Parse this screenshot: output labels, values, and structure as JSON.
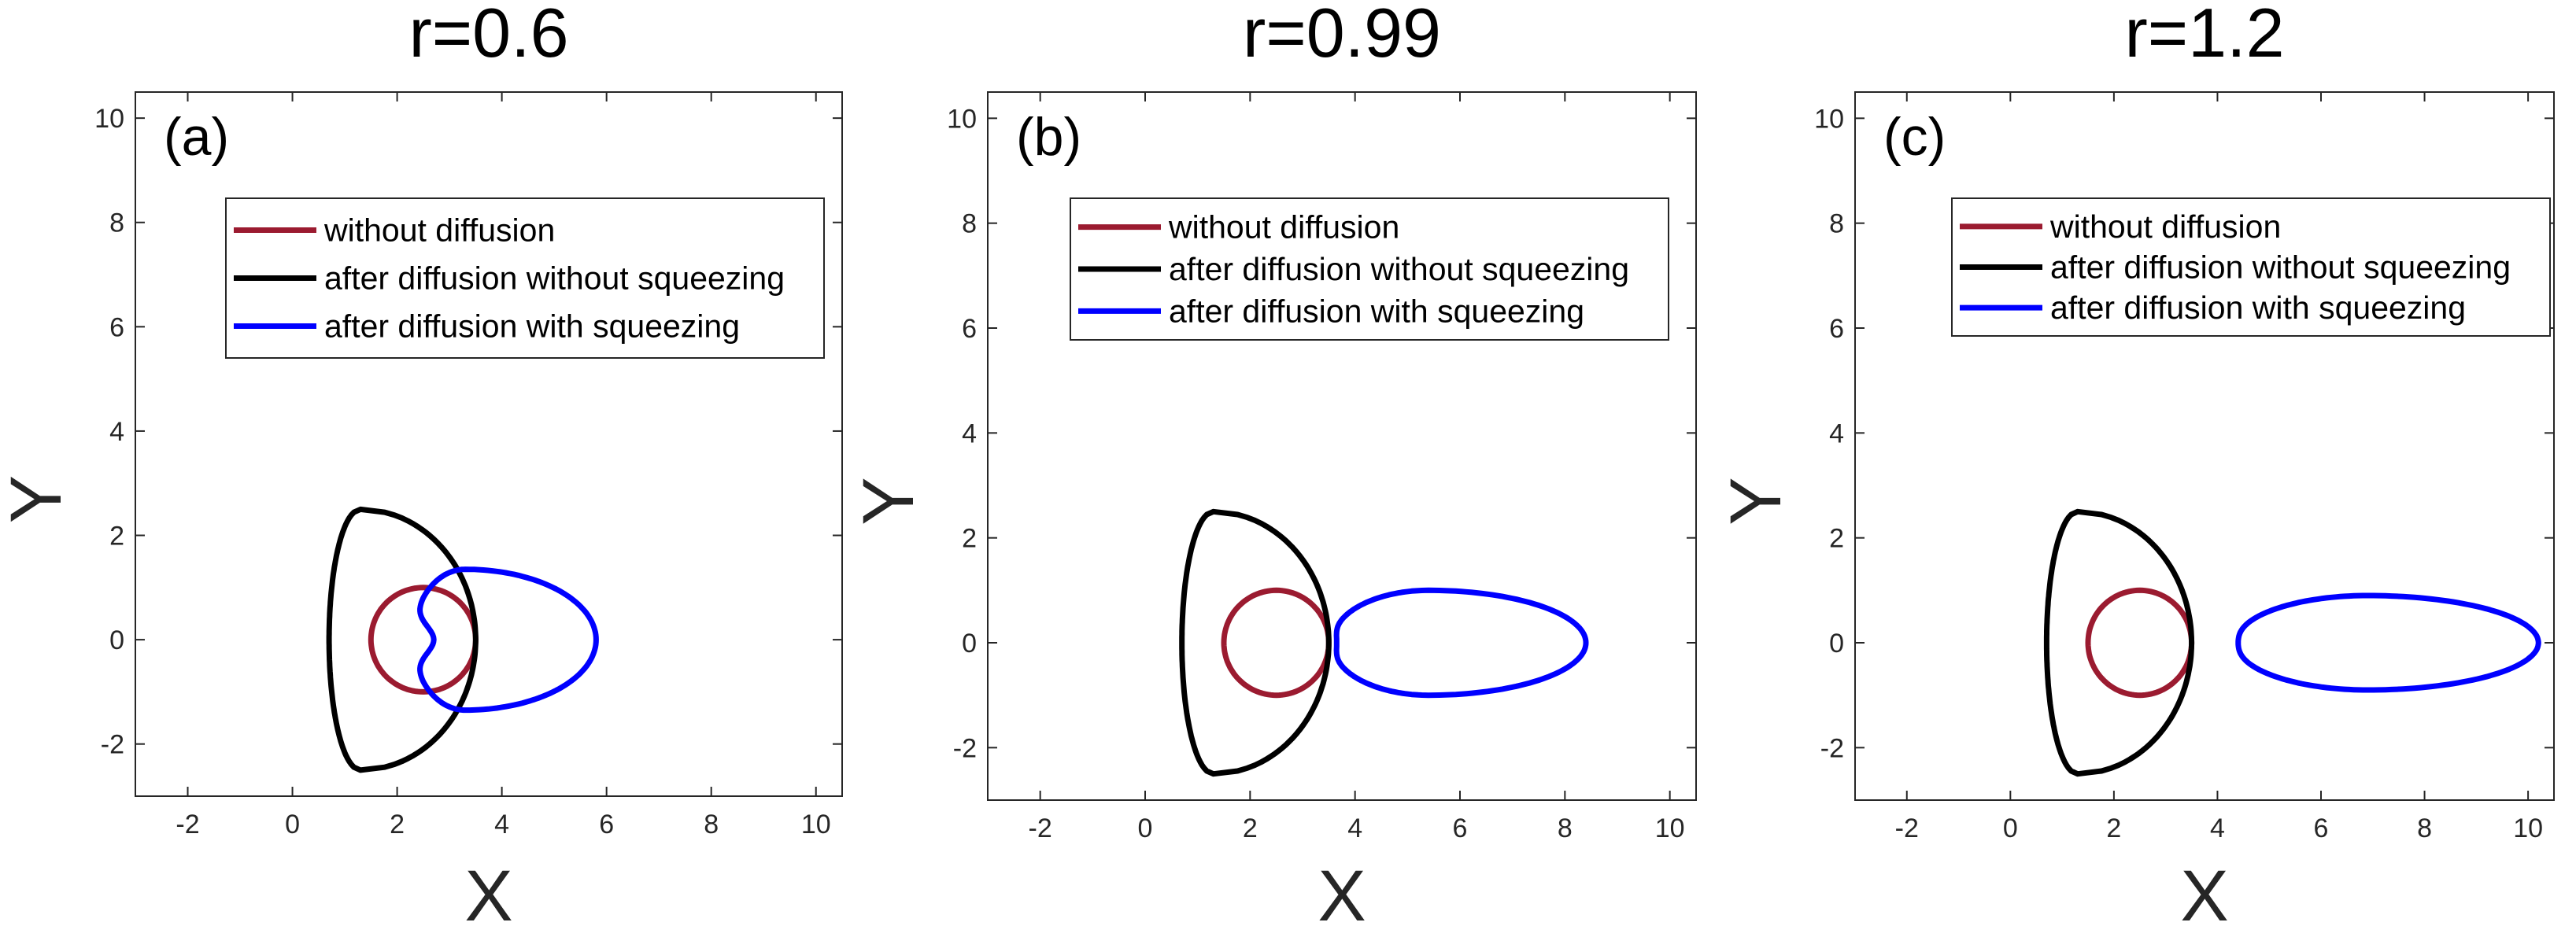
{
  "figure": {
    "legend_labels": [
      "without diffusion",
      "after diffusion without squeezing",
      "after diffusion with squeezing"
    ]
  },
  "chart_data": [
    {
      "type": "line",
      "panel_label": "(a)",
      "title": "r=0.6",
      "xlabel": "X",
      "ylabel": "Y",
      "xlim": [
        -3,
        10.5
      ],
      "ylim": [
        -3,
        10.5
      ],
      "xticks": [
        -2,
        0,
        2,
        4,
        6,
        8,
        10
      ],
      "yticks": [
        -2,
        0,
        2,
        4,
        6,
        8,
        10
      ],
      "grid": false,
      "legend_position": "top-center",
      "series": [
        {
          "name": "without diffusion",
          "color": "#9b1b30",
          "shape": "circle",
          "params": {
            "cx": 2.5,
            "cy": 0,
            "r": 1.0
          }
        },
        {
          "name": "after diffusion without squeezing",
          "color": "#000000",
          "shape": "crescent",
          "params": {
            "tipX": 1.3,
            "tipY": 2.5,
            "outerX": 3.5,
            "innerX": 0.7
          }
        },
        {
          "name": "after diffusion with squeezing",
          "color": "#0000ff",
          "shape": "dimpled-ellipse",
          "params": {
            "left": 2.3,
            "right": 5.8,
            "center": 3.3,
            "halfHeight": 1.35,
            "dimple": 0.4
          }
        }
      ]
    },
    {
      "type": "line",
      "panel_label": "(b)",
      "title": "r=0.99",
      "xlabel": "X",
      "ylabel": "Y",
      "xlim": [
        -3,
        10.5
      ],
      "ylim": [
        -3,
        10.5
      ],
      "xticks": [
        -2,
        0,
        2,
        4,
        6,
        8,
        10
      ],
      "yticks": [
        -2,
        0,
        2,
        4,
        6,
        8,
        10
      ],
      "grid": false,
      "legend_position": "top-center",
      "series": [
        {
          "name": "without diffusion",
          "color": "#9b1b30",
          "shape": "circle",
          "params": {
            "cx": 2.5,
            "cy": 0,
            "r": 1.0
          }
        },
        {
          "name": "after diffusion without squeezing",
          "color": "#000000",
          "shape": "crescent",
          "params": {
            "tipX": 1.3,
            "tipY": 2.5,
            "outerX": 3.5,
            "innerX": 0.7
          }
        },
        {
          "name": "after diffusion with squeezing",
          "color": "#0000ff",
          "shape": "dimpled-ellipse",
          "params": {
            "left": 3.55,
            "right": 8.4,
            "center": 5.4,
            "halfHeight": 1.0,
            "dimple": 0.1
          }
        }
      ]
    },
    {
      "type": "line",
      "panel_label": "(c)",
      "title": "r=1.2",
      "xlabel": "X",
      "ylabel": "Y",
      "xlim": [
        -3,
        10.5
      ],
      "ylim": [
        -3,
        10.5
      ],
      "xticks": [
        -2,
        0,
        2,
        4,
        6,
        8,
        10
      ],
      "yticks": [
        -2,
        0,
        2,
        4,
        6,
        8,
        10
      ],
      "grid": false,
      "legend_position": "top-center",
      "series": [
        {
          "name": "without diffusion",
          "color": "#9b1b30",
          "shape": "circle",
          "params": {
            "cx": 2.5,
            "cy": 0,
            "r": 1.0
          }
        },
        {
          "name": "after diffusion without squeezing",
          "color": "#000000",
          "shape": "crescent",
          "params": {
            "tipX": 1.3,
            "tipY": 2.5,
            "outerX": 3.5,
            "innerX": 0.7
          }
        },
        {
          "name": "after diffusion with squeezing",
          "color": "#0000ff",
          "shape": "dimpled-ellipse",
          "params": {
            "left": 4.35,
            "right": 10.2,
            "center": 6.9,
            "halfHeight": 0.9,
            "dimple": 0.05
          }
        }
      ]
    }
  ]
}
